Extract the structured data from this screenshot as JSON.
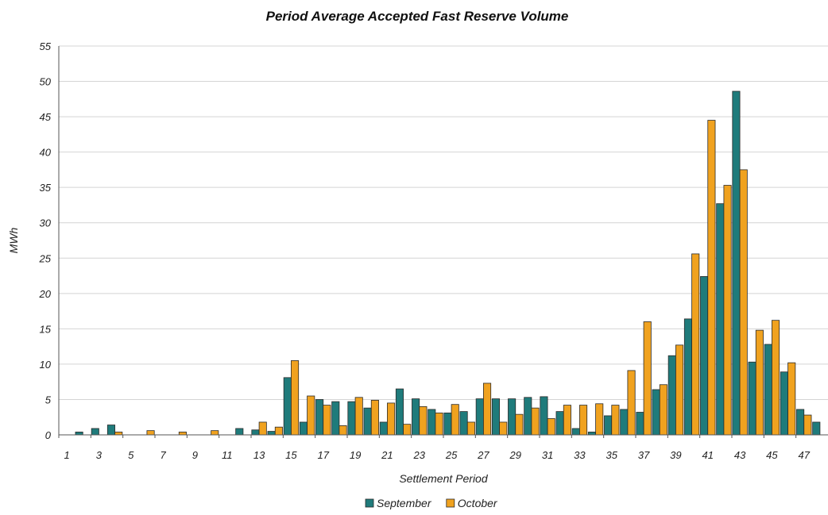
{
  "chart_data": {
    "type": "bar",
    "title": "Period Average Accepted Fast Reserve Volume",
    "xlabel": "Settlement Period",
    "ylabel": "MWh",
    "ylim": [
      0,
      55
    ],
    "yticks": [
      0,
      5,
      10,
      15,
      20,
      25,
      30,
      35,
      40,
      45,
      50,
      55
    ],
    "xtick_labels": [
      "1",
      "3",
      "5",
      "7",
      "9",
      "11",
      "13",
      "15",
      "17",
      "19",
      "21",
      "23",
      "25",
      "27",
      "29",
      "31",
      "33",
      "35",
      "37",
      "39",
      "41",
      "43",
      "45",
      "47"
    ],
    "categories": [
      1,
      2,
      3,
      4,
      5,
      6,
      7,
      8,
      9,
      10,
      11,
      12,
      13,
      14,
      15,
      16,
      17,
      18,
      19,
      20,
      21,
      22,
      23,
      24,
      25,
      26,
      27,
      28,
      29,
      30,
      31,
      32,
      33,
      34,
      35,
      36,
      37,
      38,
      39,
      40,
      41,
      42,
      43,
      44,
      45,
      46,
      47,
      48
    ],
    "grid": true,
    "legend_position": "bottom",
    "series": [
      {
        "name": "September",
        "color": "#1f7b7b",
        "values": [
          0,
          0.4,
          0.9,
          1.4,
          0,
          0,
          0,
          0,
          0,
          0,
          0,
          0.9,
          0.7,
          0.5,
          8.1,
          1.8,
          5.0,
          4.7,
          4.7,
          3.8,
          1.8,
          6.5,
          5.1,
          3.6,
          3.1,
          3.3,
          5.1,
          5.1,
          5.1,
          5.3,
          5.4,
          3.3,
          0.9,
          0.4,
          2.7,
          3.6,
          3.2,
          6.4,
          11.2,
          16.4,
          22.4,
          32.7,
          48.6,
          10.3,
          12.8,
          8.9,
          3.6,
          1.8
        ]
      },
      {
        "name": "October",
        "color": "#f0a21f",
        "values": [
          0,
          0,
          0,
          0.4,
          0,
          0.6,
          0,
          0.4,
          0,
          0.6,
          0,
          0,
          1.8,
          1.1,
          10.5,
          5.5,
          4.2,
          1.3,
          5.3,
          4.9,
          4.5,
          1.5,
          4.0,
          3.1,
          4.3,
          1.8,
          7.3,
          1.8,
          2.9,
          3.8,
          2.3,
          4.2,
          4.2,
          4.4,
          4.2,
          9.1,
          16.0,
          7.1,
          12.7,
          25.6,
          44.5,
          35.3,
          37.5,
          14.8,
          16.2,
          10.2,
          2.8,
          0
        ]
      }
    ]
  }
}
